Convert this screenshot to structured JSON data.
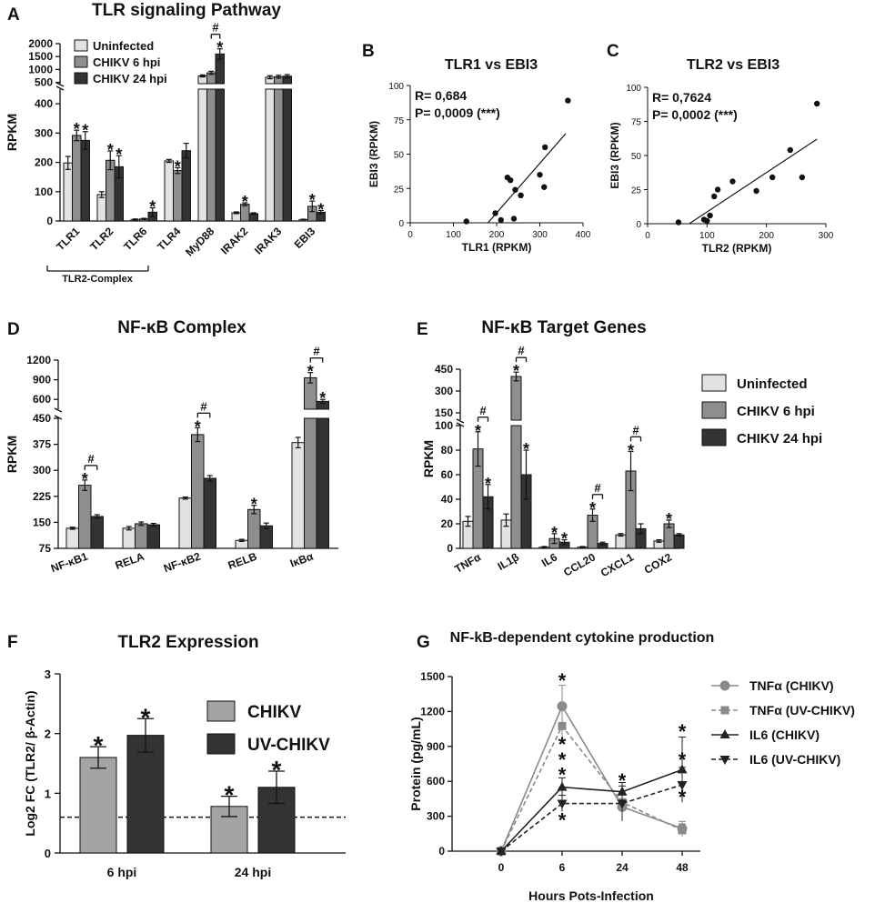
{
  "colors": {
    "uninfected": "#e2e2e2",
    "chikv6": "#8e8e8e",
    "chikv24": "#333333",
    "chikv_f": "#a4a4a4",
    "uvchikv_f": "#333333",
    "tnf_chikv": "#8a8a8a",
    "tnf_uv": "#8a8a8a",
    "il6_chikv": "#222222",
    "il6_uv": "#222222"
  },
  "chart_data": [
    {
      "id": "A",
      "panel_letter": "A",
      "type": "bar",
      "title": "TLR signaling Pathway",
      "ylabel": "RPKM",
      "categories": [
        "TLR1",
        "TLR2",
        "TLR6",
        "TLR4",
        "MyD88",
        "IRAK2",
        "IRAK3",
        "EBI3"
      ],
      "group_label": "TLR2-Complex",
      "series": [
        {
          "name": "Uninfected",
          "values": [
            198,
            90,
            5,
            205,
            750,
            28,
            700,
            5
          ],
          "errors": [
            22,
            10,
            2,
            5,
            40,
            3,
            60,
            1
          ]
        },
        {
          "name": "CHIKV 6 hpi",
          "values": [
            292,
            207,
            7,
            172,
            870,
            57,
            720,
            50
          ],
          "errors": [
            18,
            32,
            2,
            10,
            60,
            5,
            55,
            18
          ]
        },
        {
          "name": "CHIKV 24 hpi",
          "values": [
            275,
            185,
            30,
            240,
            1600,
            25,
            740,
            30
          ],
          "errors": [
            30,
            38,
            15,
            25,
            200,
            3,
            60,
            6
          ]
        }
      ],
      "yaxis_lower": {
        "range": [
          0,
          450
        ],
        "ticks": [
          0,
          100,
          200,
          300,
          400
        ]
      },
      "yaxis_upper": {
        "range": [
          450,
          2000
        ],
        "ticks": [
          500,
          1000,
          1500,
          2000
        ]
      },
      "stars": [
        [
          0,
          1
        ],
        [
          0,
          2
        ],
        [
          1,
          1
        ],
        [
          1,
          2
        ],
        [
          2,
          2
        ],
        [
          3,
          1
        ],
        [
          4,
          2
        ],
        [
          5,
          1
        ],
        [
          7,
          1
        ],
        [
          7,
          2
        ]
      ],
      "hash": {
        "category": 4,
        "from": 1,
        "to": 2,
        "label": "#"
      },
      "star_label": "*"
    },
    {
      "id": "B",
      "panel_letter": "B",
      "type": "scatter",
      "title": "TLR1 vs EBI3",
      "xlabel": "TLR1 (RPKM)",
      "ylabel": "EBI3 (RPKM)",
      "xlim": [
        0,
        400
      ],
      "ylim": [
        0,
        100
      ],
      "xticks": [
        0,
        100,
        200,
        300,
        400
      ],
      "yticks": [
        0,
        25,
        50,
        75,
        100
      ],
      "x": [
        130,
        197,
        210,
        225,
        232,
        240,
        243,
        256,
        300,
        310,
        312,
        365
      ],
      "y": [
        1,
        7,
        2,
        33,
        31,
        3,
        24,
        20,
        35,
        26,
        55,
        89
      ],
      "fit": [
        [
          180,
          0
        ],
        [
          360,
          65
        ]
      ],
      "r_text": "R= 0,684",
      "p_text": "P= 0,0009 (***)"
    },
    {
      "id": "C",
      "panel_letter": "C",
      "type": "scatter",
      "title": "TLR2 vs EBI3",
      "xlabel": "TLR2 (RPKM)",
      "ylabel": "EBI3 (RPKM)",
      "xlim": [
        0,
        300
      ],
      "ylim": [
        0,
        100
      ],
      "xticks": [
        0,
        100,
        200,
        300
      ],
      "yticks": [
        0,
        25,
        50,
        75,
        100
      ],
      "x": [
        52,
        95,
        100,
        105,
        112,
        118,
        143,
        183,
        210,
        240,
        260,
        285
      ],
      "y": [
        1,
        3,
        2,
        6,
        20,
        25,
        31,
        24,
        34,
        54,
        34,
        88
      ],
      "fit": [
        [
          70,
          0
        ],
        [
          285,
          62
        ]
      ],
      "r_text": "R= 0,7624",
      "p_text": "P= 0,0002 (***)"
    },
    {
      "id": "D",
      "panel_letter": "D",
      "type": "bar",
      "title": "NF-κB Complex",
      "ylabel": "RPKM",
      "categories": [
        "NF-κB1",
        "RELA",
        "NF-κB2",
        "RELB",
        "IκBα"
      ],
      "series": [
        {
          "name": "Uninfected",
          "values": [
            133,
            133,
            220,
            98,
            380
          ],
          "errors": [
            3,
            5,
            3,
            3,
            15
          ]
        },
        {
          "name": "CHIKV 6 hpi",
          "values": [
            257,
            146,
            403,
            187,
            930
          ],
          "errors": [
            15,
            5,
            20,
            12,
            80
          ]
        },
        {
          "name": "CHIKV 24 hpi",
          "values": [
            167,
            143,
            277,
            140,
            570
          ],
          "errors": [
            5,
            4,
            8,
            8,
            30
          ]
        }
      ],
      "yaxis_lower": {
        "range": [
          75,
          450
        ],
        "ticks": [
          75,
          150,
          225,
          300,
          375,
          450
        ]
      },
      "yaxis_upper": {
        "range": [
          450,
          1200
        ],
        "ticks": [
          600,
          900,
          1200
        ]
      },
      "stars": [
        [
          0,
          1
        ],
        [
          2,
          1
        ],
        [
          3,
          1
        ],
        [
          4,
          1
        ],
        [
          4,
          2
        ]
      ],
      "hashes": [
        {
          "category": 0,
          "from": 1,
          "to": 2,
          "label": "#"
        },
        {
          "category": 2,
          "from": 1,
          "to": 2,
          "label": "#"
        },
        {
          "category": 4,
          "from": 1,
          "to": 2,
          "label": "#"
        }
      ],
      "star_label": "*"
    },
    {
      "id": "E",
      "panel_letter": "E",
      "type": "bar",
      "title": "NF-κB Target Genes",
      "ylabel": "RPKM",
      "categories": [
        "TNFα",
        "IL1β",
        "IL6",
        "CCL20",
        "CXCL1",
        "COX2"
      ],
      "series": [
        {
          "name": "Uninfected",
          "values": [
            22,
            23,
            1,
            1,
            11,
            6
          ],
          "errors": [
            4,
            5,
            0.5,
            0.5,
            1,
            1
          ]
        },
        {
          "name": "CHIKV 6 hpi",
          "values": [
            81,
            400,
            8,
            27,
            63,
            20
          ],
          "errors": [
            14,
            30,
            4,
            5,
            16,
            3
          ]
        },
        {
          "name": "CHIKV 24 hpi",
          "values": [
            42,
            60,
            5,
            4,
            16,
            11
          ],
          "errors": [
            10,
            20,
            2,
            1,
            4,
            1
          ]
        }
      ],
      "yaxis_lower": {
        "range": [
          0,
          100
        ],
        "ticks": [
          0,
          20,
          40,
          60,
          80,
          100
        ]
      },
      "yaxis_upper": {
        "range": [
          100,
          450
        ],
        "ticks": [
          150,
          300,
          450
        ]
      },
      "stars": [
        [
          0,
          1
        ],
        [
          0,
          2
        ],
        [
          1,
          1
        ],
        [
          1,
          2
        ],
        [
          2,
          1
        ],
        [
          2,
          2
        ],
        [
          3,
          1
        ],
        [
          4,
          1
        ],
        [
          5,
          1
        ]
      ],
      "hashes": [
        {
          "category": 0,
          "from": 1,
          "to": 2,
          "label": "#"
        },
        {
          "category": 1,
          "from": 1,
          "to": 2,
          "label": "#"
        },
        {
          "category": 3,
          "from": 1,
          "to": 2,
          "label": "#"
        },
        {
          "category": 4,
          "from": 1,
          "to": 2,
          "label": "#"
        }
      ],
      "star_label": "*",
      "legend": [
        "Uninfected",
        "CHIKV 6 hpi",
        "CHIKV 24 hpi"
      ]
    },
    {
      "id": "F",
      "panel_letter": "F",
      "type": "bar",
      "title": "TLR2 Expression",
      "ylabel": "Log2 FC (TLR2/ β-Actin)",
      "categories": [
        "6 hpi",
        "24 hpi"
      ],
      "ylim": [
        0,
        3
      ],
      "yticks": [
        0,
        1,
        2,
        3
      ],
      "reference_line": 0.6,
      "series": [
        {
          "name": "CHIKV",
          "values": [
            1.6,
            0.78
          ],
          "errors": [
            0.18,
            0.17
          ]
        },
        {
          "name": "UV-CHIKV",
          "values": [
            1.97,
            1.1
          ],
          "errors": [
            0.28,
            0.27
          ]
        }
      ],
      "stars": [
        [
          0,
          0
        ],
        [
          0,
          1
        ],
        [
          1,
          0
        ],
        [
          1,
          1
        ]
      ],
      "star_label": "*"
    },
    {
      "id": "G",
      "panel_letter": "G",
      "type": "line",
      "title": "NF-kB-dependent cytokine production",
      "xlabel": "Hours Pots-Infection",
      "ylabel": "Protein (pg/mL)",
      "x": [
        0,
        6,
        24,
        48
      ],
      "ylim": [
        0,
        1500
      ],
      "yticks": [
        0,
        300,
        600,
        900,
        1200,
        1500
      ],
      "series": [
        {
          "name": "TNFα (CHIKV)",
          "marker": "circle",
          "dashed": false,
          "values": [
            0,
            1245,
            380,
            195
          ],
          "errors": [
            0,
            180,
            60,
            60
          ]
        },
        {
          "name": "TNFα (UV-CHIKV)",
          "marker": "square",
          "dashed": true,
          "values": [
            0,
            1075,
            420,
            180
          ],
          "errors": [
            0,
            150,
            60,
            55
          ]
        },
        {
          "name": "IL6 (CHIKV)",
          "marker": "triangle",
          "dashed": false,
          "values": [
            0,
            550,
            510,
            700
          ],
          "errors": [
            0,
            80,
            80,
            280
          ]
        },
        {
          "name": "IL6 (UV-CHIKV)",
          "marker": "triangle-down",
          "dashed": true,
          "values": [
            0,
            410,
            410,
            570
          ],
          "errors": [
            0,
            70,
            150,
            150
          ]
        }
      ],
      "stars": [
        {
          "x": 6,
          "y": 1470
        },
        {
          "x": 6,
          "y": 920
        },
        {
          "x": 6,
          "y": 790
        },
        {
          "x": 6,
          "y": 660
        },
        {
          "x": 6,
          "y": 270
        },
        {
          "x": 24,
          "y": 610
        },
        {
          "x": 48,
          "y": 1030
        },
        {
          "x": 48,
          "y": 790
        },
        {
          "x": 48,
          "y": 470
        }
      ],
      "star_label": "*"
    }
  ]
}
